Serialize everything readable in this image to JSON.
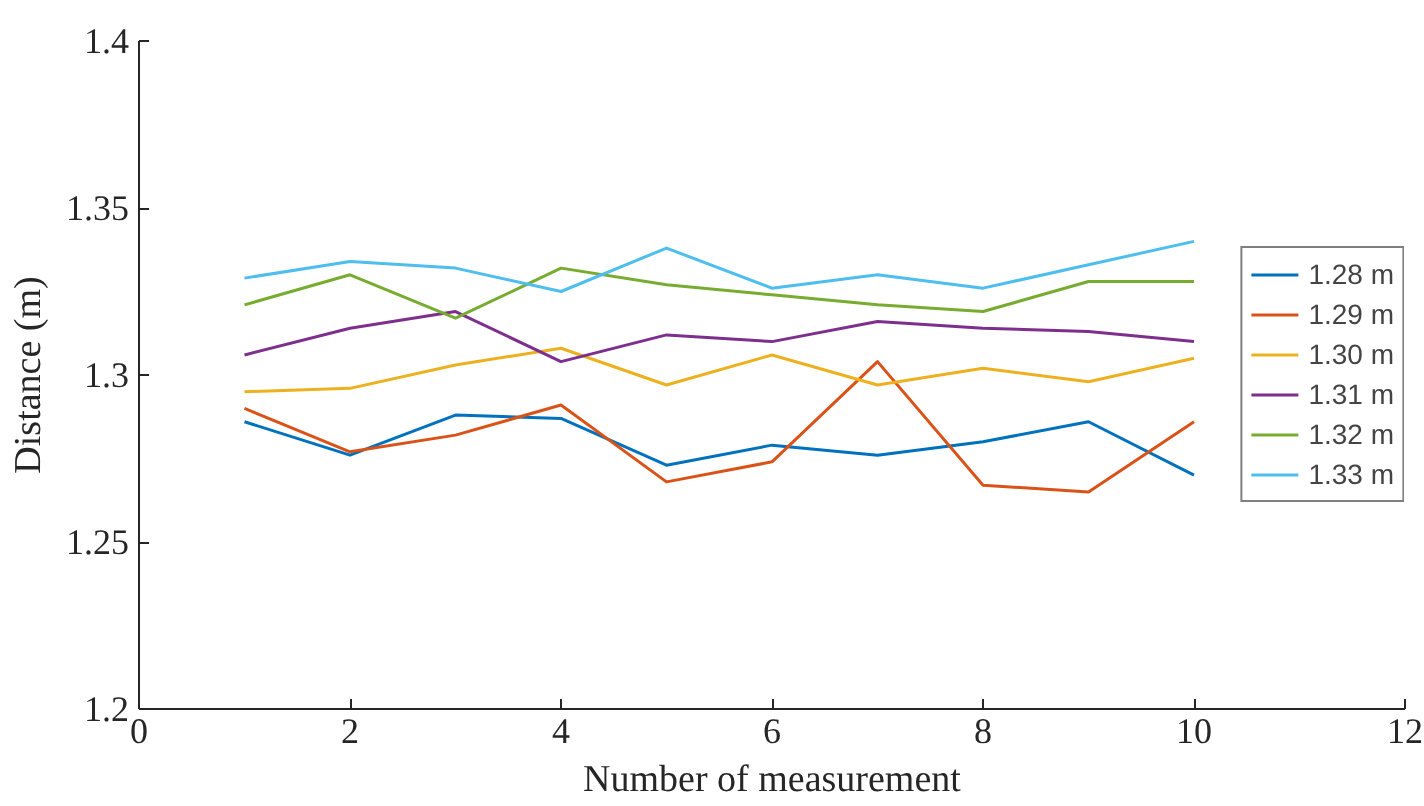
{
  "chart_data": {
    "type": "line",
    "xlabel": "Number of measurement",
    "ylabel": "Distance (m)",
    "x": [
      1,
      2,
      3,
      4,
      5,
      6,
      7,
      8,
      9,
      10
    ],
    "xlim": [
      0,
      12
    ],
    "xticks": [
      0,
      2,
      4,
      6,
      8,
      10,
      12
    ],
    "ylim": [
      1.2,
      1.4
    ],
    "yticks": [
      1.2,
      1.25,
      1.3,
      1.35,
      1.4
    ],
    "grid": false,
    "legend": "right",
    "series": [
      {
        "name": "1.28 m",
        "color": "#0072bd",
        "values": [
          1.286,
          1.276,
          1.288,
          1.287,
          1.273,
          1.279,
          1.276,
          1.28,
          1.286,
          1.27
        ]
      },
      {
        "name": "1.29 m",
        "color": "#d95319",
        "values": [
          1.29,
          1.277,
          1.282,
          1.291,
          1.268,
          1.274,
          1.304,
          1.267,
          1.265,
          1.286
        ]
      },
      {
        "name": "1.30 m",
        "color": "#edb120",
        "values": [
          1.295,
          1.296,
          1.303,
          1.308,
          1.297,
          1.306,
          1.297,
          1.302,
          1.298,
          1.305
        ]
      },
      {
        "name": "1.31 m",
        "color": "#7e2f8e",
        "values": [
          1.306,
          1.314,
          1.319,
          1.304,
          1.312,
          1.31,
          1.316,
          1.314,
          1.313,
          1.31
        ]
      },
      {
        "name": "1.32 m",
        "color": "#77ac30",
        "values": [
          1.321,
          1.33,
          1.317,
          1.332,
          1.327,
          1.324,
          1.321,
          1.319,
          1.328,
          1.328
        ]
      },
      {
        "name": "1.33 m",
        "color": "#4dbeee",
        "values": [
          1.329,
          1.334,
          1.332,
          1.325,
          1.338,
          1.326,
          1.33,
          1.326,
          1.333,
          1.34
        ]
      }
    ]
  }
}
